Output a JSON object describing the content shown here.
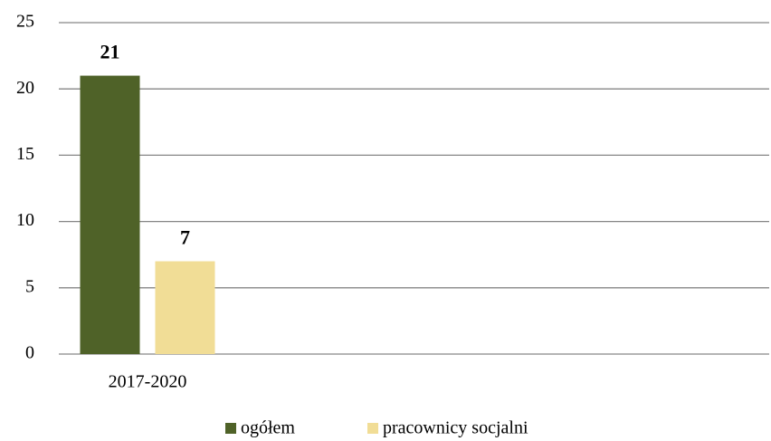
{
  "chart_data": {
    "type": "bar",
    "categories": [
      "2017-2020"
    ],
    "series": [
      {
        "name": "ogółem",
        "color": "#4f6228",
        "values": [
          21
        ]
      },
      {
        "name": "pracownicy socjalni",
        "color": "#f1dd96",
        "values": [
          7
        ]
      }
    ],
    "ylim": [
      0,
      25
    ],
    "yticks": [
      0,
      5,
      10,
      15,
      20,
      25
    ],
    "grid": true,
    "legend": "bottom"
  }
}
